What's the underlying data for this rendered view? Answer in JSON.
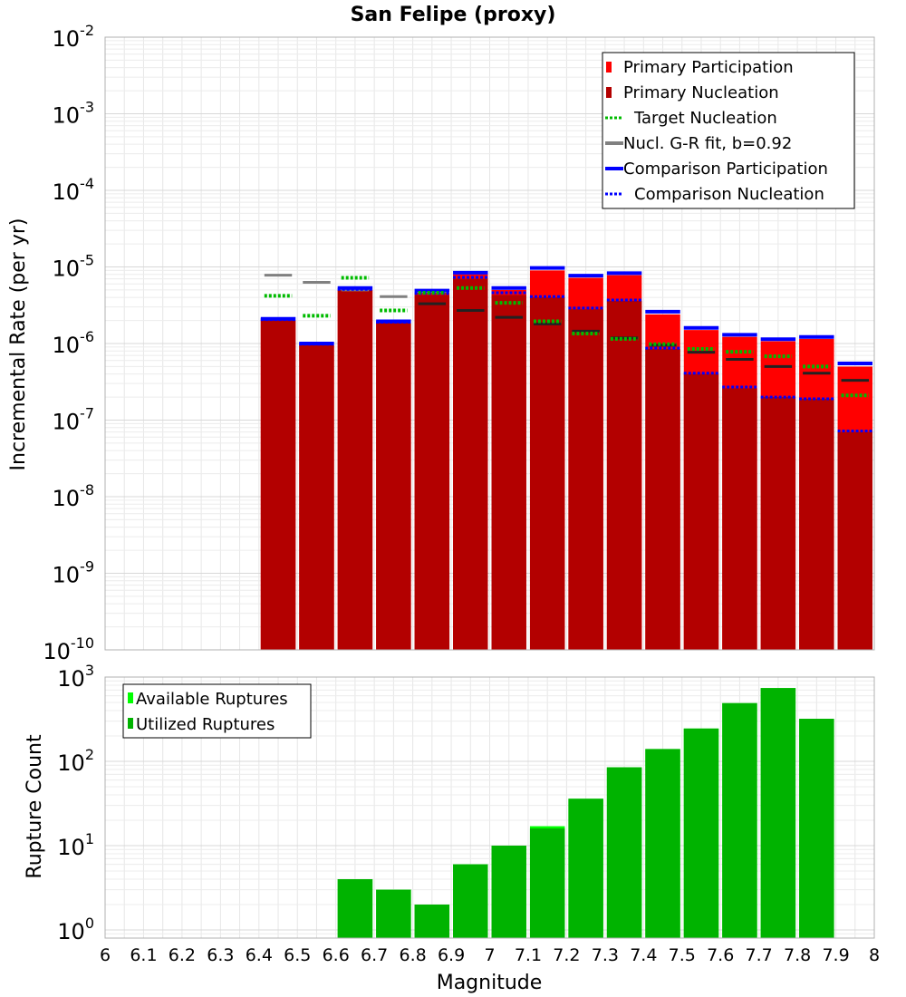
{
  "chart_data": [
    {
      "type": "bar",
      "title": "San Felipe (proxy)",
      "xlabel": "",
      "ylabel": "Incremental Rate (per yr)",
      "yscale": "log",
      "ylim": [
        1e-10,
        0.01
      ],
      "xlim": [
        6,
        8
      ],
      "grid": true,
      "legend_position": "top-right",
      "bin_width": 0.1,
      "x": [
        6.45,
        6.55,
        6.65,
        6.75,
        6.85,
        6.95,
        7.05,
        7.15,
        7.25,
        7.35,
        7.45,
        7.55,
        7.65,
        7.75,
        7.85,
        7.95
      ],
      "y_ticks": [
        {
          "base": "10",
          "exp": "-2"
        },
        {
          "base": "10",
          "exp": "-3"
        },
        {
          "base": "10",
          "exp": "-4"
        },
        {
          "base": "10",
          "exp": "-5"
        },
        {
          "base": "10",
          "exp": "-6"
        },
        {
          "base": "10",
          "exp": "-7"
        },
        {
          "base": "10",
          "exp": "-8"
        },
        {
          "base": "10",
          "exp": "-9"
        },
        {
          "base": "10",
          "exp": "-10"
        }
      ],
      "series": [
        {
          "name": "Primary Participation",
          "color": "#ff0000",
          "style": "bar",
          "values": [
            2e-06,
            9.5e-07,
            5e-06,
            1.85e-06,
            4.6e-06,
            8e-06,
            5e-06,
            9e-06,
            7.2e-06,
            7.8e-06,
            2.4e-06,
            1.5e-06,
            1.22e-06,
            1.07e-06,
            1.15e-06,
            5e-07
          ]
        },
        {
          "name": "Primary Nucleation",
          "color": "#b30000",
          "style": "bar",
          "values": [
            2e-06,
            9.5e-07,
            5e-06,
            1.85e-06,
            4.3e-06,
            7e-06,
            4.3e-06,
            4e-06,
            2.8e-06,
            3.6e-06,
            8.5e-07,
            4e-07,
            2.6e-07,
            2e-07,
            1.9e-07,
            7e-08
          ]
        },
        {
          "name": "Target Nucleation",
          "color": "#00bb00",
          "style": "dotted",
          "values": [
            4.2e-06,
            2.3e-06,
            7.2e-06,
            2.7e-06,
            4.6e-06,
            5.3e-06,
            3.4e-06,
            1.95e-06,
            1.35e-06,
            1.15e-06,
            9.8e-07,
            8.5e-07,
            7.8e-07,
            6.8e-07,
            5e-07,
            2.1e-07
          ]
        },
        {
          "name": "Nucl. G-R fit, b=0.92",
          "color": "#808080",
          "style": "solid",
          "values": [
            7.8e-06,
            6.3e-06,
            5e-06,
            4.1e-06,
            3.3e-06,
            2.7e-06,
            2.2e-06,
            1.8e-06,
            1.45e-06,
            1.18e-06,
            9.5e-07,
            7.7e-07,
            6.2e-07,
            5e-07,
            4.1e-07,
            3.3e-07
          ]
        },
        {
          "name": "Comparison Participation",
          "color": "#0000ff",
          "style": "solid",
          "values": [
            2.1e-06,
            1e-06,
            5.3e-06,
            1.95e-06,
            4.9e-06,
            8.4e-06,
            5.3e-06,
            9.7e-06,
            7.7e-06,
            8.3e-06,
            2.6e-06,
            1.6e-06,
            1.3e-06,
            1.14e-06,
            1.22e-06,
            5.5e-07
          ]
        },
        {
          "name": "Comparison Nucleation",
          "color": "#0000ff",
          "style": "dotted",
          "values": [
            2.05e-06,
            9.8e-07,
            5.1e-06,
            1.9e-06,
            4.5e-06,
            7.3e-06,
            4.6e-06,
            4.1e-06,
            2.9e-06,
            3.7e-06,
            8.7e-07,
            4.1e-07,
            2.7e-07,
            2e-07,
            1.9e-07,
            7.2e-08
          ]
        }
      ]
    },
    {
      "type": "bar",
      "title": "",
      "xlabel": "Magnitude",
      "ylabel": "Rupture Count",
      "yscale": "log",
      "ylim": [
        0.8,
        1000
      ],
      "xlim": [
        6,
        8
      ],
      "grid": true,
      "legend_position": "top-left",
      "bin_width": 0.1,
      "x": [
        6.65,
        6.75,
        6.85,
        6.95,
        7.05,
        7.15,
        7.25,
        7.35,
        7.45,
        7.55,
        7.65,
        7.75,
        7.85
      ],
      "x_ticks": [
        "6",
        "6.1",
        "6.2",
        "6.3",
        "6.4",
        "6.5",
        "6.6",
        "6.7",
        "6.8",
        "6.9",
        "7",
        "7.1",
        "7.2",
        "7.3",
        "7.4",
        "7.5",
        "7.6",
        "7.7",
        "7.8",
        "7.9",
        "8"
      ],
      "y_ticks": [
        {
          "base": "10",
          "exp": "3"
        },
        {
          "base": "10",
          "exp": "2"
        },
        {
          "base": "10",
          "exp": "1"
        },
        {
          "base": "10",
          "exp": "0"
        }
      ],
      "series": [
        {
          "name": "Available Ruptures",
          "color": "#00ff00",
          "values": [
            4,
            3,
            2,
            6,
            10,
            17,
            36,
            85,
            140,
            245,
            490,
            740,
            320
          ]
        },
        {
          "name": "Utilized Ruptures",
          "color": "#00b300",
          "values": [
            4,
            3,
            2,
            6,
            10,
            16,
            36,
            85,
            140,
            245,
            490,
            740,
            320
          ]
        }
      ]
    }
  ]
}
